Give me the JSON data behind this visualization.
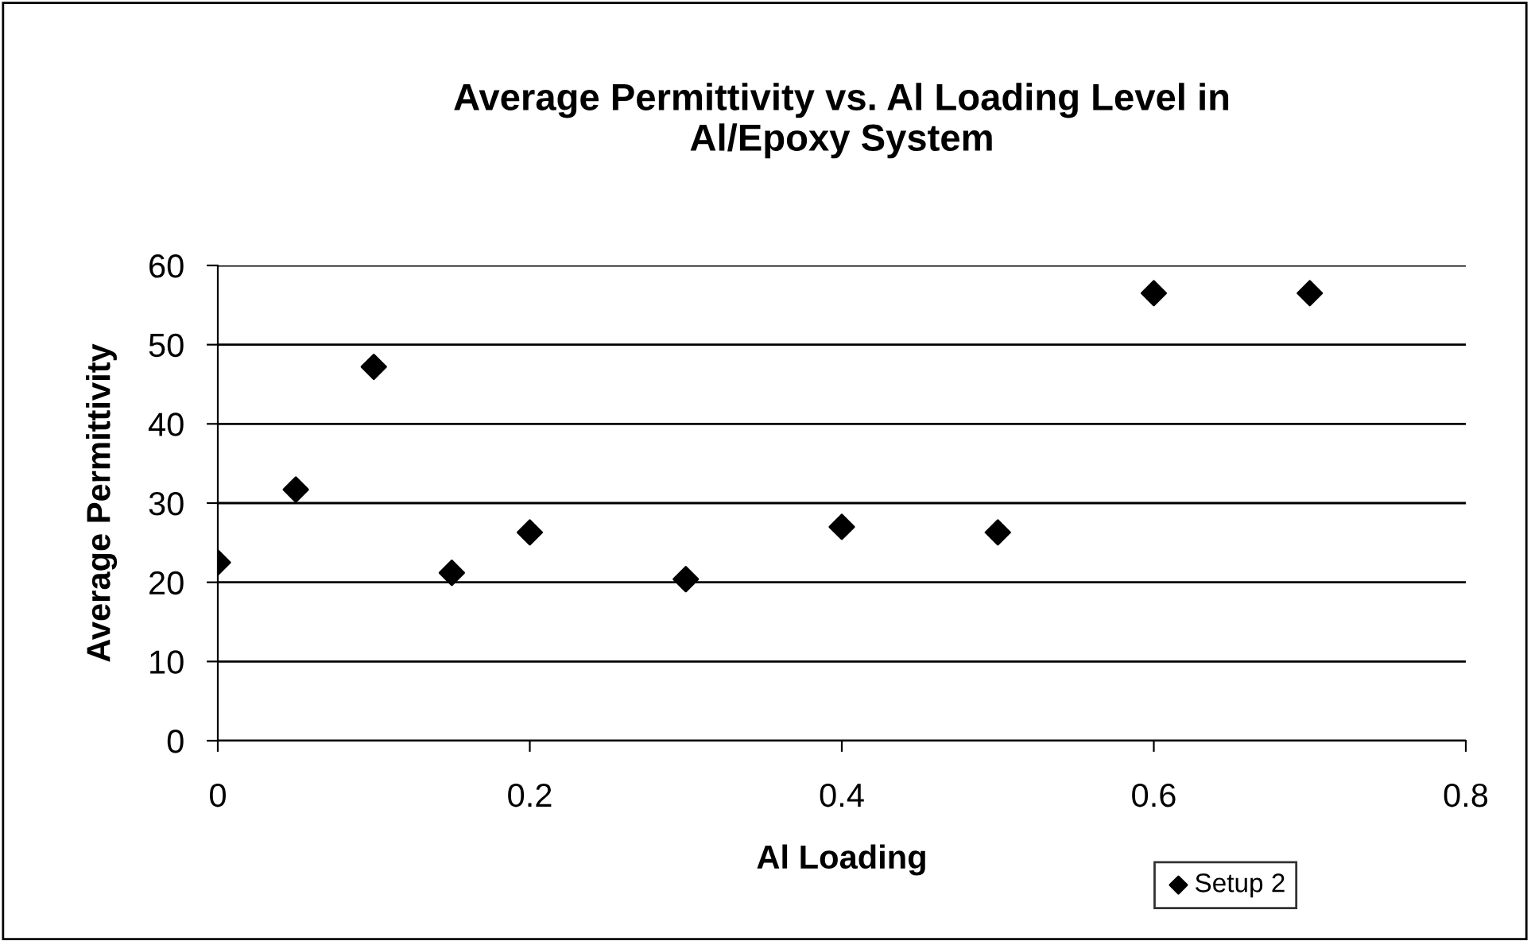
{
  "chart_data": {
    "type": "scatter",
    "title": "Average Permittivity vs. Al Loading Level in\nAl/Epoxy System",
    "xlabel": "Al Loading",
    "ylabel": "Average Permittivity",
    "x": [
      0,
      0.05,
      0.1,
      0.15,
      0.2,
      0.3,
      0.4,
      0.5,
      0.6,
      0.7
    ],
    "series": [
      {
        "name": "Setup 2",
        "color": "#000000",
        "values": [
          22.5,
          31.7,
          47.2,
          21.2,
          26.3,
          20.4,
          27.0,
          26.3,
          56.5,
          56.5
        ]
      }
    ],
    "xlim": [
      0,
      0.8
    ],
    "xticks": [
      0,
      0.2,
      0.4,
      0.6,
      0.8
    ],
    "ylim": [
      0,
      60
    ],
    "yticks": [
      0,
      10,
      20,
      30,
      40,
      50,
      60
    ],
    "grid": "y",
    "legend": "bottom right",
    "marker": "diamond"
  }
}
